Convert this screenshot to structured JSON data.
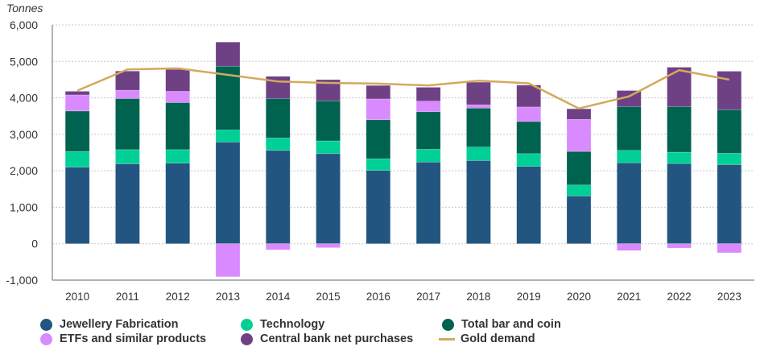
{
  "chart_data": {
    "type": "bar",
    "stacked": true,
    "title": "",
    "ylabel": "Tonnes",
    "xlabel": "",
    "ylim": [
      -1000,
      6000
    ],
    "yticks": [
      -1000,
      0,
      1000,
      2000,
      3000,
      4000,
      5000,
      6000
    ],
    "ytick_labels": [
      "-1,000",
      "0",
      "1,000",
      "2,000",
      "3,000",
      "4,000",
      "5,000",
      "6,000"
    ],
    "grid": true,
    "legend_position": "bottom",
    "categories": [
      "2010",
      "2011",
      "2012",
      "2013",
      "2014",
      "2015",
      "2016",
      "2017",
      "2018",
      "2019",
      "2020",
      "2021",
      "2022",
      "2023"
    ],
    "series": [
      {
        "name": "Jewellery Fabrication",
        "color": "#225680",
        "kind": "bar",
        "values": [
          2100,
          2190,
          2210,
          2790,
          2560,
          2470,
          2010,
          2240,
          2280,
          2120,
          1310,
          2220,
          2200,
          2170
        ]
      },
      {
        "name": "Technology",
        "color": "#00cf96",
        "kind": "bar",
        "values": [
          430,
          390,
          370,
          330,
          340,
          350,
          320,
          350,
          370,
          350,
          300,
          340,
          310,
          310
        ]
      },
      {
        "name": "Total bar and coin",
        "color": "#00634f",
        "kind": "bar",
        "values": [
          1110,
          1400,
          1290,
          1750,
          1080,
          1100,
          1070,
          1030,
          1070,
          880,
          920,
          1200,
          1250,
          1190
        ]
      },
      {
        "name": "ETFs and similar products",
        "color": "#d98afe",
        "kind": "bar",
        "values": [
          440,
          230,
          310,
          -907,
          -170,
          -110,
          570,
          290,
          90,
          400,
          880,
          -190,
          -120,
          -250
        ]
      },
      {
        "name": "Central bank net purchases",
        "color": "#6e4184",
        "kind": "bar",
        "values": [
          100,
          525,
          600,
          660,
          610,
          580,
          370,
          380,
          620,
          600,
          290,
          440,
          1080,
          1060
        ]
      },
      {
        "name": "Gold demand",
        "color": "#d4a95b",
        "kind": "line",
        "values": [
          4200,
          4780,
          4810,
          4630,
          4450,
          4410,
          4390,
          4340,
          4470,
          4400,
          3710,
          4040,
          4760,
          4500
        ]
      }
    ]
  },
  "legend": {
    "items": [
      {
        "label": "Jewellery Fabrication",
        "color": "#225680",
        "shape": "circle"
      },
      {
        "label": "Technology",
        "color": "#00cf96",
        "shape": "circle"
      },
      {
        "label": "Total bar and coin",
        "color": "#00634f",
        "shape": "circle"
      },
      {
        "label": "ETFs and similar products",
        "color": "#d98afe",
        "shape": "circle"
      },
      {
        "label": "Central bank net purchases",
        "color": "#6e4184",
        "shape": "circle"
      },
      {
        "label": "Gold demand",
        "color": "#d4a95b",
        "shape": "line"
      }
    ]
  }
}
